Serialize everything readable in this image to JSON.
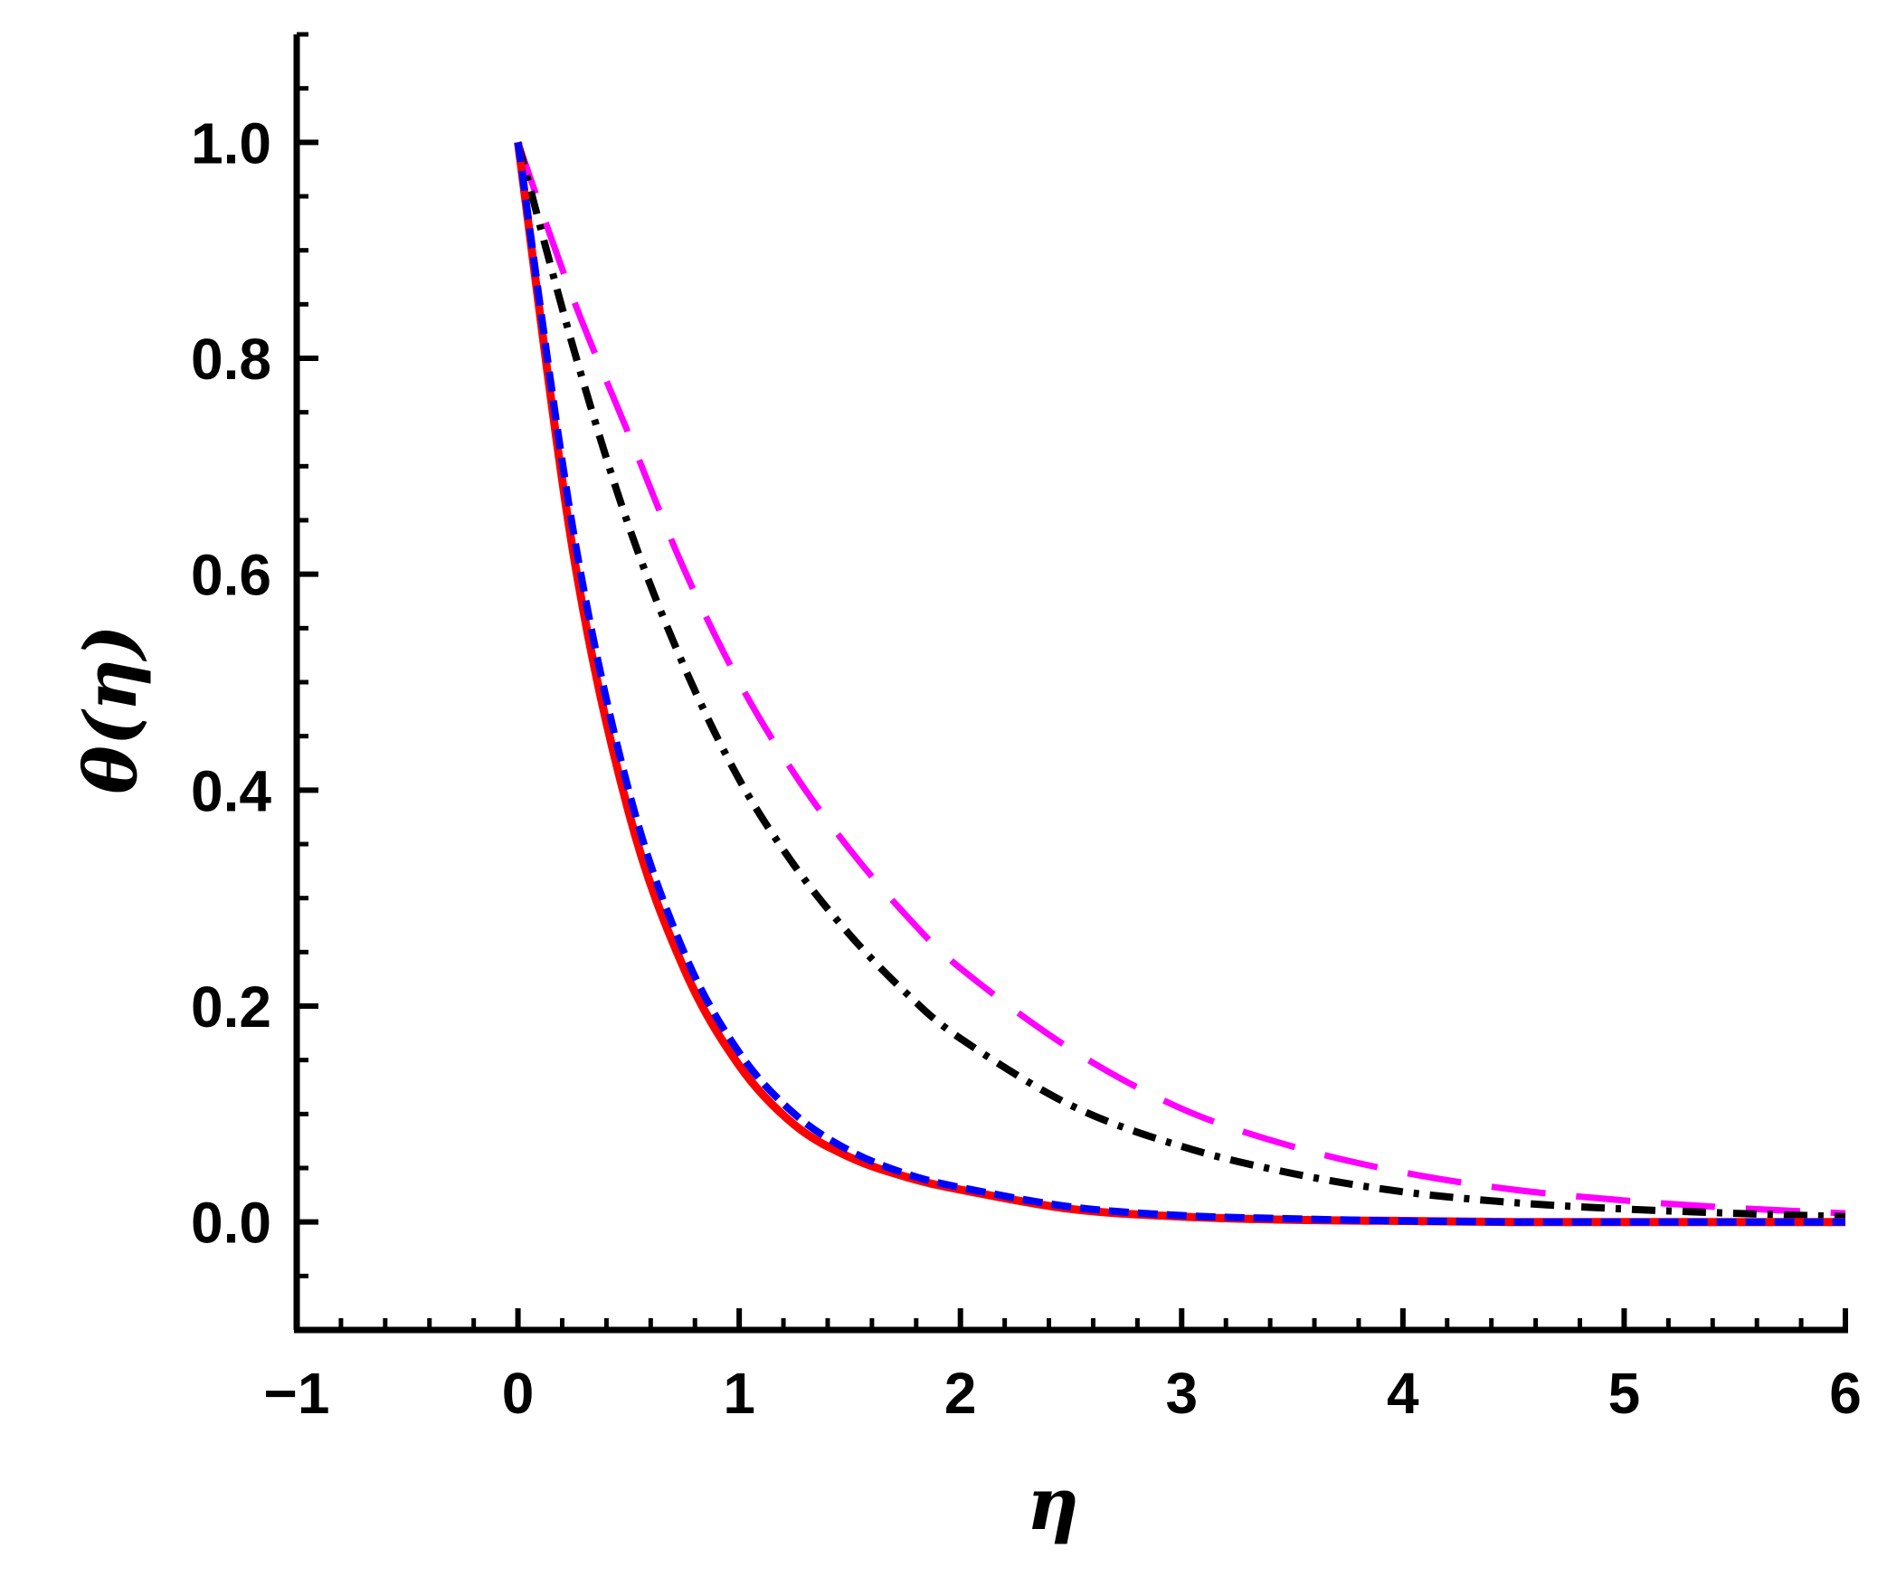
{
  "chart_data": {
    "type": "line",
    "xlabel": "η",
    "ylabel": "θ(η)",
    "xlim": [
      -1,
      6
    ],
    "ylim": [
      -0.1,
      1.1
    ],
    "xticks": [
      {
        "value": -1,
        "label": "−1"
      },
      {
        "value": 0,
        "label": "0"
      },
      {
        "value": 1,
        "label": "1"
      },
      {
        "value": 2,
        "label": "2"
      },
      {
        "value": 3,
        "label": "3"
      },
      {
        "value": 4,
        "label": "4"
      },
      {
        "value": 5,
        "label": "5"
      },
      {
        "value": 6,
        "label": "6"
      }
    ],
    "yticks": [
      {
        "value": 0.0,
        "label": "0.0"
      },
      {
        "value": 0.2,
        "label": "0.2"
      },
      {
        "value": 0.4,
        "label": "0.4"
      },
      {
        "value": 0.6,
        "label": "0.6"
      },
      {
        "value": 0.8,
        "label": "0.8"
      },
      {
        "value": 1.0,
        "label": "1.0"
      }
    ],
    "grid": false,
    "x": [
      0,
      0.25,
      0.5,
      0.75,
      1,
      1.25,
      1.5,
      1.75,
      2,
      2.5,
      3,
      3.5,
      4,
      4.5,
      5,
      5.5,
      6
    ],
    "series": [
      {
        "color": "#ff0000",
        "style": "solid",
        "values": [
          1.0,
          0.62,
          0.38,
          0.235,
          0.145,
          0.09,
          0.06,
          0.042,
          0.03,
          0.012,
          0.005,
          0.002,
          0.001,
          0.0,
          0.0,
          0.0,
          0.0
        ]
      },
      {
        "color": "#0000ff",
        "style": "dashed",
        "values": [
          1.0,
          0.64,
          0.4,
          0.25,
          0.157,
          0.1,
          0.066,
          0.045,
          0.032,
          0.014,
          0.006,
          0.003,
          0.001,
          0.0,
          0.0,
          0.0,
          0.0
        ]
      },
      {
        "color": "#000000",
        "style": "dashdot",
        "values": [
          1.0,
          0.81,
          0.645,
          0.515,
          0.41,
          0.33,
          0.266,
          0.213,
          0.17,
          0.108,
          0.07,
          0.045,
          0.028,
          0.018,
          0.012,
          0.008,
          0.005
        ]
      },
      {
        "color": "#ff00ff",
        "style": "longdash",
        "values": [
          1.0,
          0.855,
          0.73,
          0.605,
          0.5,
          0.415,
          0.345,
          0.285,
          0.235,
          0.16,
          0.105,
          0.07,
          0.046,
          0.03,
          0.02,
          0.013,
          0.008
        ]
      }
    ]
  }
}
